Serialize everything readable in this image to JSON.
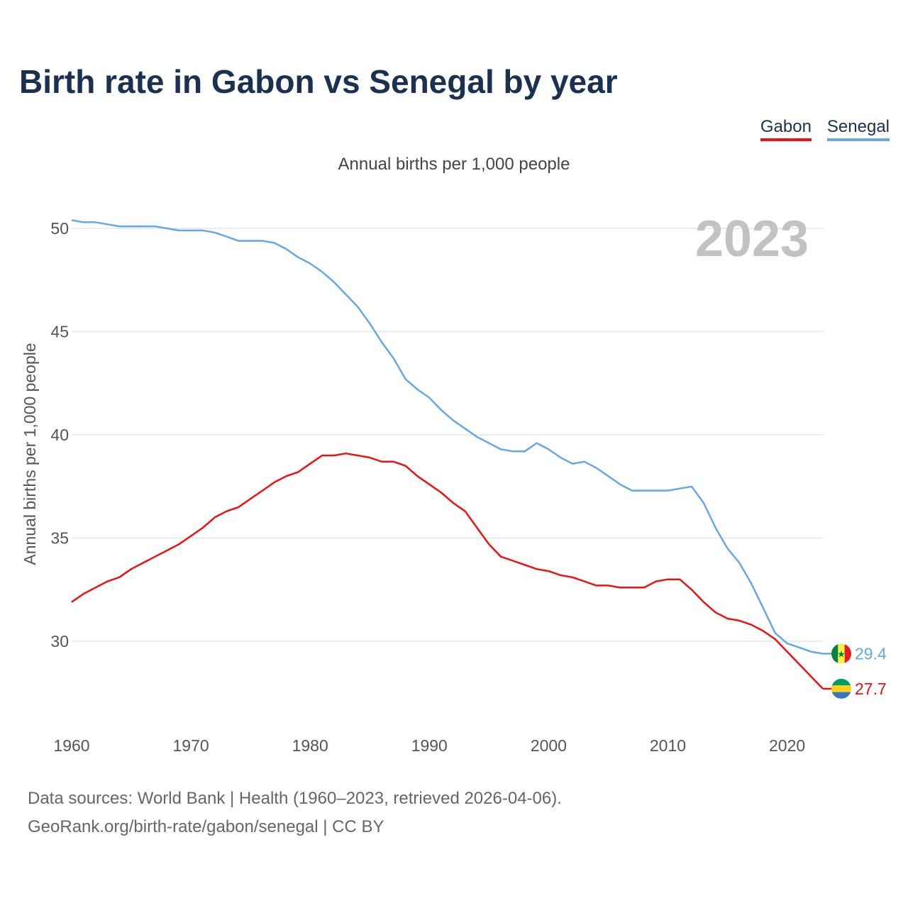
{
  "chart_data": {
    "type": "line",
    "title": "Birth rate in Gabon vs Senegal by year",
    "subtitle": "Annual births per 1,000 people",
    "ylabel": "Annual births per 1,000 people",
    "xlabel": "",
    "year_label": "2023",
    "xlim": [
      1960,
      2023
    ],
    "ylim": [
      26.5,
      50.5
    ],
    "x_ticks": [
      1960,
      1970,
      1980,
      1990,
      2000,
      2010,
      2020
    ],
    "y_ticks": [
      30,
      35,
      40,
      45,
      50
    ],
    "grid": true,
    "legend": "top-right",
    "x": [
      1960,
      1961,
      1962,
      1963,
      1964,
      1965,
      1966,
      1967,
      1968,
      1969,
      1970,
      1971,
      1972,
      1973,
      1974,
      1975,
      1976,
      1977,
      1978,
      1979,
      1980,
      1981,
      1982,
      1983,
      1984,
      1985,
      1986,
      1987,
      1988,
      1989,
      1990,
      1991,
      1992,
      1993,
      1994,
      1995,
      1996,
      1997,
      1998,
      1999,
      2000,
      2001,
      2002,
      2003,
      2004,
      2005,
      2006,
      2007,
      2008,
      2009,
      2010,
      2011,
      2012,
      2013,
      2014,
      2015,
      2016,
      2017,
      2018,
      2019,
      2020,
      2021,
      2022,
      2023
    ],
    "series": [
      {
        "name": "Gabon",
        "color": "#ee1111",
        "end_label": "27.7",
        "flag": "gabon-flag",
        "values": [
          31.9,
          32.3,
          32.6,
          32.9,
          33.1,
          33.5,
          33.8,
          34.1,
          34.4,
          34.7,
          35.1,
          35.5,
          36.0,
          36.3,
          36.5,
          36.9,
          37.3,
          37.7,
          38.0,
          38.2,
          38.6,
          39.0,
          39.0,
          39.1,
          39.0,
          38.9,
          38.7,
          38.7,
          38.5,
          38.0,
          37.6,
          37.2,
          36.7,
          36.3,
          35.5,
          34.7,
          34.1,
          33.9,
          33.7,
          33.5,
          33.4,
          33.2,
          33.1,
          32.9,
          32.7,
          32.7,
          32.6,
          32.6,
          32.6,
          32.9,
          33.0,
          33.0,
          32.5,
          31.9,
          31.4,
          31.1,
          31.0,
          30.8,
          30.5,
          30.1,
          29.5,
          28.9,
          28.3,
          27.7
        ]
      },
      {
        "name": "Senegal",
        "color": "#64a8e8",
        "end_label": "29.4",
        "flag": "senegal-flag",
        "values": [
          50.4,
          50.3,
          50.3,
          50.2,
          50.1,
          50.1,
          50.1,
          50.1,
          50.0,
          49.9,
          49.9,
          49.9,
          49.8,
          49.6,
          49.4,
          49.4,
          49.4,
          49.3,
          49.0,
          48.6,
          48.3,
          47.9,
          47.4,
          46.8,
          46.2,
          45.4,
          44.5,
          43.7,
          42.7,
          42.2,
          41.8,
          41.2,
          40.7,
          40.3,
          39.9,
          39.6,
          39.3,
          39.2,
          39.2,
          39.6,
          39.3,
          38.9,
          38.6,
          38.7,
          38.4,
          38.0,
          37.6,
          37.3,
          37.3,
          37.3,
          37.3,
          37.4,
          37.5,
          36.7,
          35.5,
          34.5,
          33.8,
          32.8,
          31.6,
          30.4,
          29.9,
          29.7,
          29.5,
          29.4
        ]
      }
    ]
  },
  "footer": {
    "line1": "Data sources: World Bank | Health (1960–2023, retrieved 2026-04-06).",
    "line2": "GeoRank.org/birth-rate/gabon/senegal | CC BY"
  }
}
